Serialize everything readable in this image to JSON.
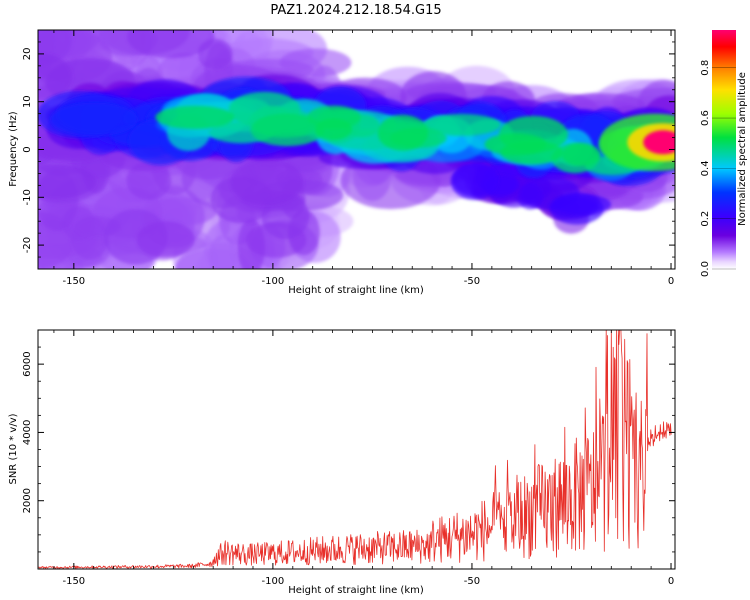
{
  "figure": {
    "title": "PAZ1.2024.212.18.54.G15"
  },
  "chart_data": [
    {
      "type": "heatmap",
      "title": "PAZ1.2024.212.18.54.G15",
      "xlabel": "Height of straight line (km)",
      "ylabel": "Frequency (Hz)",
      "xlim": [
        -159,
        1
      ],
      "ylim": [
        -25,
        25
      ],
      "xticks": [
        -150,
        -100,
        -50,
        0
      ],
      "yticks": [
        -20,
        -10,
        0,
        10,
        20
      ],
      "colorbar": {
        "label": "Normalized spectral amplitude",
        "range": [
          0,
          0.95
        ],
        "ticks": [
          0.0,
          0.2,
          0.4,
          0.6,
          0.8
        ],
        "colormap": [
          "#ffffff",
          "#e9d5ff",
          "#b57bff",
          "#6a00e0",
          "#3a00ff",
          "#0033ff",
          "#00c8ff",
          "#00e040",
          "#9eff00",
          "#ffe000",
          "#ff8000",
          "#ff0000",
          "#ff0070"
        ]
      },
      "ridge": {
        "x": [
          -125,
          -115,
          -105,
          -95,
          -85,
          -75,
          -65,
          -55,
          -45,
          -35,
          -25,
          -15,
          -5,
          0
        ],
        "y": [
          6,
          6,
          6,
          6,
          5,
          3,
          2,
          3,
          3,
          1,
          0,
          -1,
          1,
          2
        ]
      },
      "peak": {
        "x": -2,
        "y": 1.5,
        "value": 0.95
      },
      "grid": false
    },
    {
      "type": "line",
      "xlabel": "Height of straight line (km)",
      "ylabel": "SNR (10 * v/v)",
      "xlim": [
        -159,
        1
      ],
      "ylim": [
        0,
        7000
      ],
      "xticks": [
        -150,
        -100,
        -50,
        0
      ],
      "yticks": [
        2000,
        4000,
        6000
      ],
      "grid": false,
      "series": [
        {
          "color": "#e8302a",
          "x": [
            -159,
            -150,
            -140,
            -130,
            -120,
            -116,
            -112,
            -106,
            -100,
            -90,
            -80,
            -70,
            -60,
            -50,
            -45,
            -40,
            -35,
            -30,
            -25,
            -20,
            -17,
            -15,
            -13,
            -12,
            -10,
            -8,
            -6,
            -4,
            -2,
            0
          ],
          "y": [
            100,
            120,
            140,
            160,
            200,
            350,
            700,
            600,
            650,
            750,
            850,
            900,
            1000,
            1250,
            1500,
            1700,
            2000,
            2200,
            2500,
            2800,
            3200,
            4500,
            6000,
            4800,
            3600,
            3200,
            3700,
            3900,
            4000,
            4100
          ]
        }
      ]
    }
  ]
}
